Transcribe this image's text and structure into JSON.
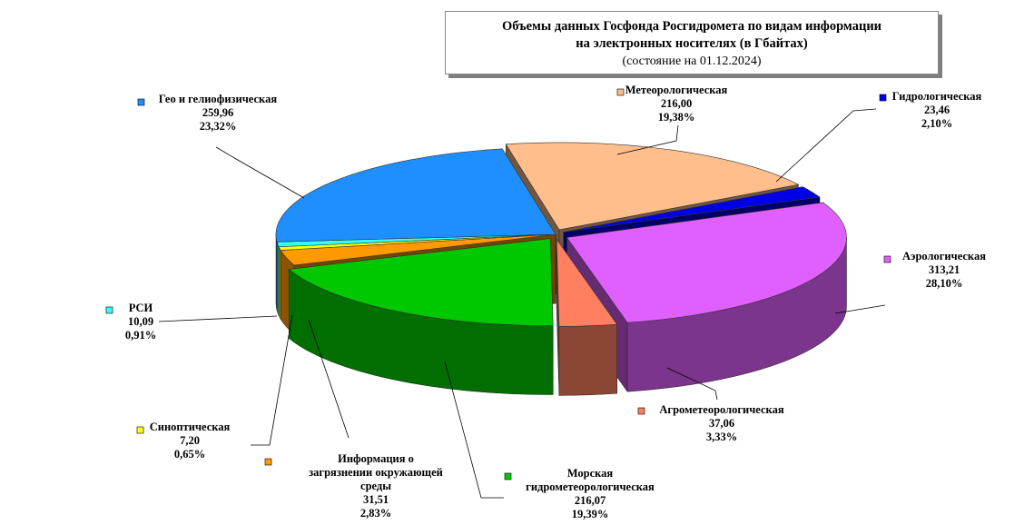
{
  "chart_data": {
    "type": "pie",
    "title_lines": [
      "Объемы данных Госфонда Росгидромета по видам информации",
      "на электронных  носителях (в Гбайтах)"
    ],
    "subtitle": "(состояние на 01.12.2024)",
    "slices": [
      {
        "name": "Метеорологическая",
        "value": "216,00",
        "percent": "19,38%",
        "v": 216.0,
        "color": "#ffbe8c"
      },
      {
        "name": "Гидрологическая",
        "value": "23,46",
        "percent": "2,10%",
        "v": 23.46,
        "color": "#0000e6"
      },
      {
        "name": "Аэрологическая",
        "value": "313,21",
        "percent": "28,10%",
        "v": 313.21,
        "color": "#e060ff"
      },
      {
        "name": "Агрометеорологическая",
        "value": "37,06",
        "percent": "3,33%",
        "v": 37.06,
        "color": "#ff7f60"
      },
      {
        "name": "Морская гидрометеорологическая",
        "value": "216,07",
        "percent": "19,39%",
        "v": 216.07,
        "color": "#00c800"
      },
      {
        "name": "Информация о загрязнении окружающей среды",
        "value": "31,51",
        "percent": "2,83%",
        "v": 31.51,
        "color": "#ff9900"
      },
      {
        "name": "Синоптическая",
        "value": "7,20",
        "percent": "0,65%",
        "v": 7.2,
        "color": "#ffff00"
      },
      {
        "name": "РСИ",
        "value": "10,09",
        "percent": "0,91%",
        "v": 10.09,
        "color": "#33ffff"
      },
      {
        "name": "Гео и гелиофизическая",
        "value": "259,96",
        "percent": "23,32%",
        "v": 259.96,
        "color": "#1f8fff"
      }
    ]
  }
}
